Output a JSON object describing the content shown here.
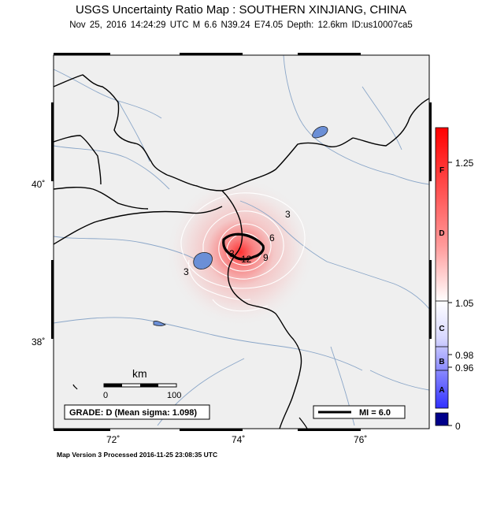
{
  "title": "USGS Uncertainty Ratio Map : SOUTHERN XINJIANG, CHINA",
  "subtitle": "Nov 25, 2016 14:24:29 UTC   M 6.6   N39.24 E74.05   Depth: 12.6km   ID:us10007ca5",
  "map": {
    "x_ticks": [
      "72˚",
      "74˚",
      "76˚"
    ],
    "y_ticks": [
      "40˚",
      "38˚"
    ],
    "contour_labels": [
      "3",
      "6",
      "9",
      "12",
      "3",
      "3"
    ],
    "scalebar": {
      "unit": "km",
      "start": "0",
      "end": "100"
    },
    "grade_box": "GRADE: D (Mean sigma: 1.098)",
    "mi_legend": "MI = 6.0",
    "colors": {
      "land": "#efefef",
      "water": "#6b8fd6",
      "rivers": "#8aa6c8",
      "borders": "#000000",
      "contours": "#ffffff",
      "high": "#ff2020"
    }
  },
  "colorbar": {
    "grade_letters": [
      "F",
      "D",
      "C",
      "B",
      "A"
    ],
    "tick_values": [
      "1.25",
      "1.05",
      "0.98",
      "0.96",
      "0"
    ],
    "colors": {
      "top": "#ff0000",
      "middle": "#ffffff",
      "bottom": "#2020ff",
      "under": "#00008b"
    }
  },
  "footer": "Map Version 3 Processed 2016-11-25 23:08:35 UTC"
}
